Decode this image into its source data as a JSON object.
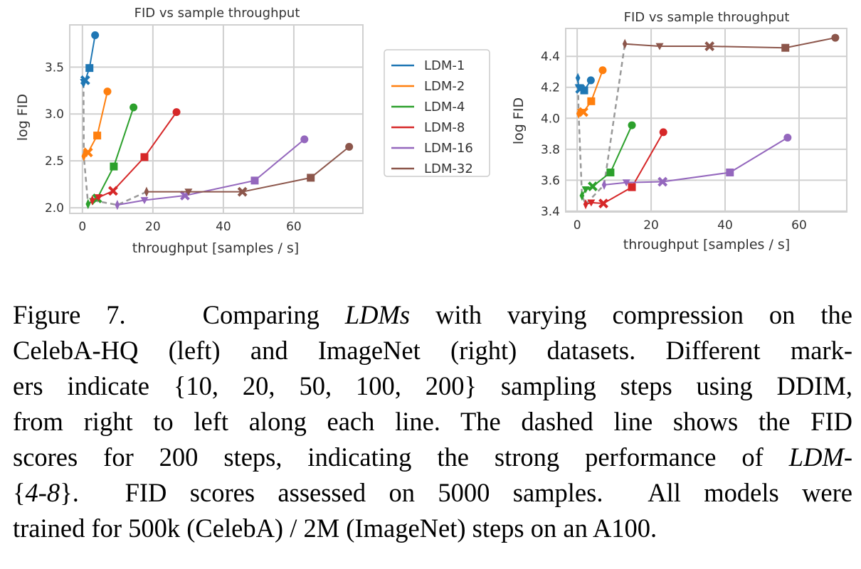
{
  "colors": {
    "LDM-1": "#1f77b4",
    "LDM-2": "#ff7f0e",
    "LDM-4": "#2ca02c",
    "LDM-8": "#d62728",
    "LDM-16": "#9467bd",
    "LDM-32": "#8c564b",
    "dashed": "#999999",
    "grid": "#d0d0d0"
  },
  "markers_by_steps": {
    "10": "circle",
    "20": "square",
    "50": "x",
    "100": "triangle-down",
    "200": "thin-diamond"
  },
  "chart_data": [
    {
      "type": "line",
      "title": "FID vs sample throughput",
      "xlabel": "throughput [samples / s]",
      "ylabel": "log FID",
      "xlim": [
        -3.6,
        79.6
      ],
      "ylim": [
        1.94,
        3.95
      ],
      "xticks": [
        "0",
        "20",
        "40",
        "60"
      ],
      "yticks": [
        "2.0",
        "2.5",
        "3.0",
        "3.5"
      ],
      "grid": true,
      "legend": "right-outside",
      "steps": [
        10,
        20,
        50,
        100,
        200
      ],
      "series": [
        {
          "name": "LDM-1",
          "x": [
            3.6,
            2.0,
            0.8,
            0.4,
            0.3
          ],
          "y": [
            3.84,
            3.49,
            3.36,
            3.34,
            3.33
          ]
        },
        {
          "name": "LDM-2",
          "x": [
            7.1,
            4.2,
            1.6,
            1.2,
            0.4
          ],
          "y": [
            3.24,
            2.77,
            2.59,
            2.58,
            2.55
          ]
        },
        {
          "name": "LDM-4",
          "x": [
            14.5,
            8.9,
            4.2,
            3.0,
            1.6
          ],
          "y": [
            3.07,
            2.44,
            2.1,
            2.07,
            2.04
          ]
        },
        {
          "name": "LDM-8",
          "x": [
            26.7,
            17.6,
            8.7,
            4.6,
            2.8
          ],
          "y": [
            3.02,
            2.54,
            2.18,
            2.11,
            2.08
          ]
        },
        {
          "name": "LDM-16",
          "x": [
            63.0,
            48.9,
            29.1,
            17.6,
            9.9
          ],
          "y": [
            2.73,
            2.29,
            2.13,
            2.08,
            2.03
          ]
        },
        {
          "name": "LDM-32",
          "x": [
            75.7,
            64.8,
            45.4,
            30.1,
            18.2
          ],
          "y": [
            2.65,
            2.32,
            2.17,
            2.17,
            2.17
          ]
        }
      ]
    },
    {
      "type": "line",
      "title": "FID vs sample throughput",
      "xlabel": "throughput [samples / s]",
      "ylabel": "log FID",
      "xlim": [
        -3.1,
        72.9
      ],
      "ylim": [
        3.395,
        4.58
      ],
      "xticks": [
        "0",
        "20",
        "40",
        "60"
      ],
      "yticks": [
        "3.4",
        "3.6",
        "3.8",
        "4.0",
        "4.2",
        "4.4"
      ],
      "grid": true,
      "legend": "none",
      "steps": [
        10,
        20,
        50,
        100,
        200
      ],
      "series": [
        {
          "name": "LDM-1",
          "x": [
            3.7,
            1.9,
            0.8,
            0.4,
            0.2
          ],
          "y": [
            4.245,
            4.18,
            4.19,
            4.2,
            4.26
          ]
        },
        {
          "name": "LDM-2",
          "x": [
            6.9,
            3.8,
            1.7,
            1.0,
            0.4
          ],
          "y": [
            4.31,
            4.11,
            4.04,
            4.04,
            4.03
          ]
        },
        {
          "name": "LDM-4",
          "x": [
            14.8,
            9.0,
            4.2,
            2.3,
            1.3
          ],
          "y": [
            3.955,
            3.65,
            3.56,
            3.54,
            3.5
          ]
        },
        {
          "name": "LDM-8",
          "x": [
            23.3,
            14.8,
            7.1,
            3.8,
            2.3
          ],
          "y": [
            3.91,
            3.555,
            3.45,
            3.455,
            3.445
          ]
        },
        {
          "name": "LDM-16",
          "x": [
            56.9,
            41.3,
            23.1,
            13.3,
            7.3
          ],
          "y": [
            3.875,
            3.65,
            3.59,
            3.585,
            3.57
          ]
        },
        {
          "name": "LDM-32",
          "x": [
            69.8,
            56.3,
            35.8,
            22.3,
            12.9
          ],
          "y": [
            4.52,
            4.455,
            4.465,
            4.465,
            4.48
          ]
        }
      ]
    }
  ],
  "legend": [
    "LDM-1",
    "LDM-2",
    "LDM-4",
    "LDM-8",
    "LDM-16",
    "LDM-32"
  ],
  "caption": [
    [
      {
        "t": "Figure 7.   Comparing "
      },
      {
        "t": "LDMs",
        "i": true
      },
      {
        "t": " with varying compression on the"
      }
    ],
    [
      {
        "t": "CelebA-HQ (left) and ImageNet (right) datasets. Different mark-"
      }
    ],
    [
      {
        "t": "ers indicate {10, 20, 50, 100, 200} sampling steps using DDIM,"
      }
    ],
    [
      {
        "t": "from right to left along each line. The dashed line shows the FID"
      }
    ],
    [
      {
        "t": "scores for 200 steps, indicating the strong performance of "
      },
      {
        "t": "LDM-",
        "i": true
      }
    ],
    [
      {
        "t": "{"
      },
      {
        "t": "4-8",
        "i": true
      },
      {
        "t": "}.  FID scores assessed on 5000 samples.  All models were"
      }
    ],
    [
      {
        "t": "trained for 500k (CelebA) / 2M (ImageNet) steps on an A100."
      }
    ]
  ]
}
